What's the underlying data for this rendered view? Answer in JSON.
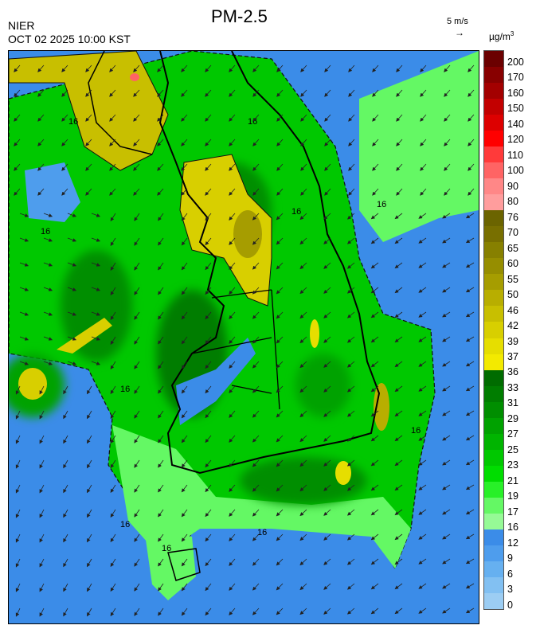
{
  "header": {
    "title": "PM-2.5",
    "agency": "NIER",
    "datetime": "OCT 02 2025 10:00 KST",
    "wind_scale": "5 m/s",
    "wind_arrow": "→",
    "unit_base": "µg/m",
    "unit_exp": "3"
  },
  "legend": {
    "ticks": [
      "200",
      "170",
      "160",
      "150",
      "140",
      "120",
      "110",
      "100",
      "90",
      "80",
      "76",
      "70",
      "65",
      "60",
      "55",
      "50",
      "46",
      "42",
      "39",
      "37",
      "36",
      "33",
      "31",
      "29",
      "27",
      "25",
      "23",
      "21",
      "19",
      "17",
      "16",
      "12",
      "9",
      "6",
      "3",
      "0"
    ],
    "colors": [
      "#6b0000",
      "#880000",
      "#a30000",
      "#c20000",
      "#dd0000",
      "#ff0000",
      "#ff3a3a",
      "#ff6464",
      "#ff8787",
      "#ff9d9d",
      "#6b6400",
      "#786f00",
      "#878000",
      "#968e00",
      "#a69d00",
      "#b8ae00",
      "#c8bf00",
      "#d8cf00",
      "#e6de00",
      "#f3ea00",
      "#006c00",
      "#007d00",
      "#008e00",
      "#00a200",
      "#00b400",
      "#00c800",
      "#00dd00",
      "#28f028",
      "#64f864",
      "#96fa96",
      "#3b8ce8",
      "#4e9ded",
      "#66b0f0",
      "#82c0f2",
      "#9ccdf3"
    ]
  },
  "map": {
    "contour_labels": [
      "16",
      "16",
      "16",
      "16",
      "16",
      "16",
      "16",
      "16",
      "16",
      "16"
    ]
  }
}
